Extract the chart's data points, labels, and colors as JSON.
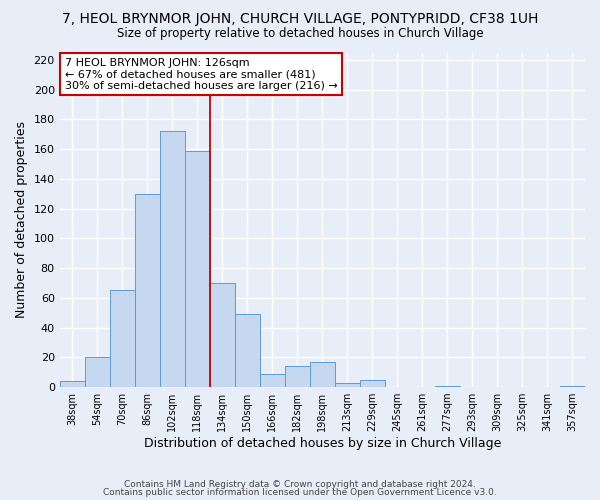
{
  "title": "7, HEOL BRYNMOR JOHN, CHURCH VILLAGE, PONTYPRIDD, CF38 1UH",
  "subtitle": "Size of property relative to detached houses in Church Village",
  "xlabel": "Distribution of detached houses by size in Church Village",
  "ylabel": "Number of detached properties",
  "bar_labels": [
    "38sqm",
    "54sqm",
    "70sqm",
    "86sqm",
    "102sqm",
    "118sqm",
    "134sqm",
    "150sqm",
    "166sqm",
    "182sqm",
    "198sqm",
    "213sqm",
    "229sqm",
    "245sqm",
    "261sqm",
    "277sqm",
    "293sqm",
    "309sqm",
    "325sqm",
    "341sqm",
    "357sqm"
  ],
  "bar_heights": [
    4,
    20,
    65,
    130,
    172,
    159,
    70,
    49,
    9,
    14,
    17,
    3,
    5,
    0,
    0,
    1,
    0,
    0,
    0,
    0,
    1
  ],
  "bar_color": "#c5d8f0",
  "bar_edge_color": "#5b9bd5",
  "vline_x": 5.5,
  "vline_color": "#cc0000",
  "ylim": [
    0,
    225
  ],
  "yticks": [
    0,
    20,
    40,
    60,
    80,
    100,
    120,
    140,
    160,
    180,
    200,
    220
  ],
  "annotation_title": "7 HEOL BRYNMOR JOHN: 126sqm",
  "annotation_line1": "← 67% of detached houses are smaller (481)",
  "annotation_line2": "30% of semi-detached houses are larger (216) →",
  "annotation_box_color": "#ffffff",
  "annotation_box_edge_color": "#cc0000",
  "footer1": "Contains HM Land Registry data © Crown copyright and database right 2024.",
  "footer2": "Contains public sector information licensed under the Open Government Licence v3.0.",
  "bg_color": "#e8eef8",
  "plot_bg_color": "#e8eef8",
  "grid_color": "#ffffff",
  "figsize": [
    6.0,
    5.0
  ],
  "dpi": 100
}
